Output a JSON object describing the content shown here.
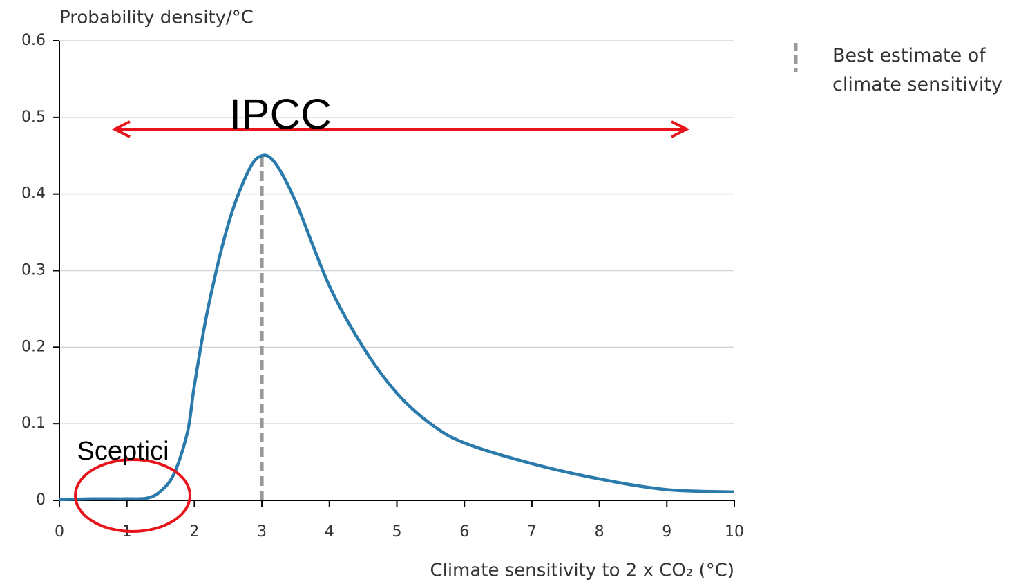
{
  "chart_data": {
    "type": "line",
    "y_label": "Probability density/°C",
    "x_label": "Climate sensitivity to 2 x CO₂ (°C)",
    "x": [
      0,
      0.5,
      1,
      1.3,
      1.5,
      1.7,
      1.9,
      2.0,
      2.2,
      2.5,
      2.8,
      3.0,
      3.2,
      3.5,
      4.0,
      4.5,
      5.0,
      5.5,
      6.0,
      7.0,
      8.0,
      9.0,
      10.0
    ],
    "series": [
      {
        "name": "Probability density",
        "color": "#2a7bab",
        "values": [
          0.001,
          0.002,
          0.002,
          0.003,
          0.012,
          0.035,
          0.09,
          0.15,
          0.25,
          0.36,
          0.43,
          0.45,
          0.44,
          0.39,
          0.28,
          0.2,
          0.14,
          0.1,
          0.075,
          0.048,
          0.028,
          0.014,
          0.011
        ]
      }
    ],
    "best_estimate": 3,
    "best_estimate_color": "#999999",
    "legend_label": "Best estimate of climate sensitivity",
    "annotations": [
      "IPCC",
      "Sceptici"
    ],
    "xlim": [
      0,
      10
    ],
    "xticks": [
      0,
      1,
      2,
      3,
      4,
      5,
      6,
      7,
      8,
      9,
      10
    ],
    "ylim": [
      0,
      0.6
    ],
    "yticks": [
      0,
      0.1,
      0.2,
      0.3,
      0.4,
      0.5,
      0.6
    ],
    "grid": true
  }
}
